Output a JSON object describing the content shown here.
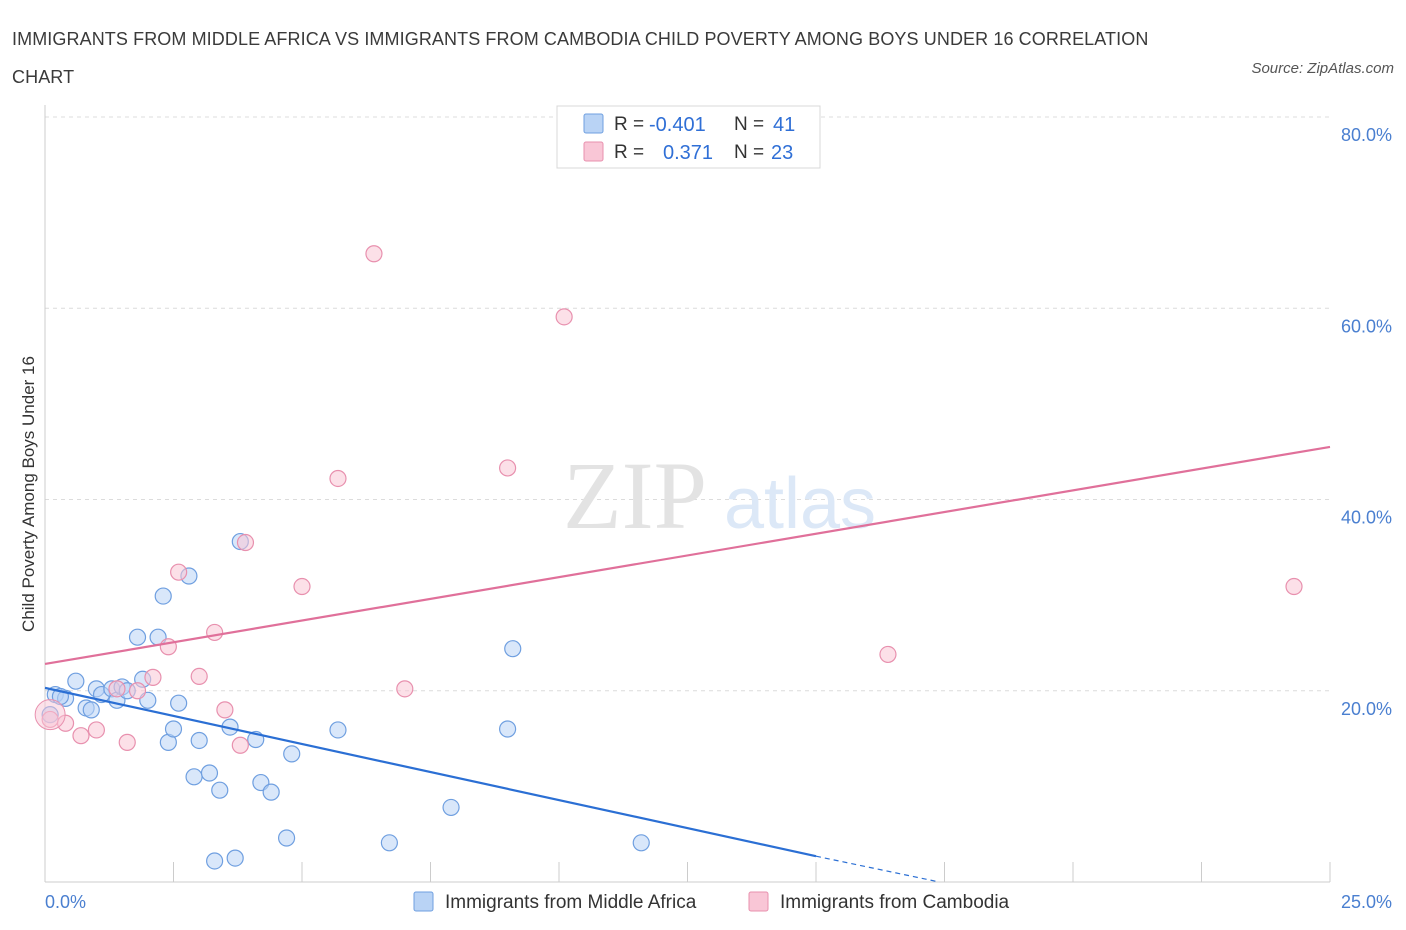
{
  "title": "IMMIGRANTS FROM MIDDLE AFRICA VS IMMIGRANTS FROM CAMBODIA CHILD POVERTY AMONG BOYS UNDER 16 CORRELATION CHART",
  "source": "Source: ZipAtlas.com",
  "watermark": {
    "zip": "ZIP",
    "atlas": "atlas"
  },
  "colors": {
    "blue_fill": "#b9d3f5",
    "blue_stroke": "#6f9fe0",
    "blue_line": "#2b6fd4",
    "pink_fill": "#f9c6d6",
    "pink_stroke": "#e890ae",
    "pink_line": "#e0709a",
    "grid": "#dcdcdc",
    "tick_label": "#4a7fd0"
  },
  "legend": {
    "r_label": "R =",
    "n_label": "N =",
    "entries": [
      {
        "r": "-0.401",
        "n": "41"
      },
      {
        "r": "0.371",
        "n": "23"
      }
    ]
  },
  "chart_data": {
    "type": "scatter",
    "xlabel": "",
    "ylabel": "Child Poverty Among Boys Under 16",
    "xlim": [
      0,
      25
    ],
    "ylim": [
      0,
      80
    ],
    "x_tick_labels": [
      "0.0%",
      "25.0%"
    ],
    "y_ticks": [
      20,
      40,
      60,
      80
    ],
    "y_tick_labels": [
      "20.0%",
      "40.0%",
      "60.0%",
      "80.0%"
    ],
    "grid": "horizontal dashed",
    "legend_placement": "top-center and bottom",
    "series": [
      {
        "name": "Immigrants from Middle Africa",
        "r": -0.401,
        "n": 41,
        "trend": {
          "x": [
            0,
            15
          ],
          "y": [
            20.3,
            2.7
          ],
          "dashed_extension_to": [
            17.4,
            0
          ]
        },
        "points": [
          [
            0.1,
            17.5
          ],
          [
            0.2,
            19.6
          ],
          [
            0.4,
            19.2
          ],
          [
            0.6,
            21.0
          ],
          [
            0.8,
            18.2
          ],
          [
            0.9,
            18.0
          ],
          [
            1.0,
            20.2
          ],
          [
            1.1,
            19.6
          ],
          [
            1.3,
            20.2
          ],
          [
            1.4,
            19.0
          ],
          [
            1.5,
            20.4
          ],
          [
            1.6,
            20.0
          ],
          [
            1.8,
            25.6
          ],
          [
            1.9,
            21.2
          ],
          [
            2.0,
            19.0
          ],
          [
            2.2,
            25.6
          ],
          [
            2.3,
            29.9
          ],
          [
            2.4,
            14.6
          ],
          [
            2.5,
            16.0
          ],
          [
            2.6,
            18.7
          ],
          [
            2.8,
            32.0
          ],
          [
            2.9,
            11.0
          ],
          [
            3.0,
            14.8
          ],
          [
            3.2,
            11.4
          ],
          [
            3.3,
            2.2
          ],
          [
            3.4,
            9.6
          ],
          [
            3.6,
            16.2
          ],
          [
            3.7,
            2.5
          ],
          [
            3.8,
            35.6
          ],
          [
            4.1,
            14.9
          ],
          [
            4.2,
            10.4
          ],
          [
            4.4,
            9.4
          ],
          [
            4.7,
            4.6
          ],
          [
            4.8,
            13.4
          ],
          [
            5.7,
            15.9
          ],
          [
            6.7,
            4.1
          ],
          [
            7.9,
            7.8
          ],
          [
            9.0,
            16.0
          ],
          [
            9.1,
            24.4
          ],
          [
            11.6,
            4.1
          ],
          [
            0.3,
            19.4
          ]
        ]
      },
      {
        "name": "Immigrants from Cambodia",
        "r": 0.371,
        "n": 23,
        "trend": {
          "x": [
            0,
            25
          ],
          "y": [
            22.8,
            45.5
          ]
        },
        "points": [
          [
            0.1,
            17.0
          ],
          [
            0.4,
            16.6
          ],
          [
            0.7,
            15.3
          ],
          [
            1.0,
            15.9
          ],
          [
            1.6,
            14.6
          ],
          [
            1.8,
            20.0
          ],
          [
            2.1,
            21.4
          ],
          [
            2.4,
            24.6
          ],
          [
            2.6,
            32.4
          ],
          [
            3.0,
            21.5
          ],
          [
            3.3,
            26.1
          ],
          [
            3.5,
            18.0
          ],
          [
            3.9,
            35.5
          ],
          [
            3.8,
            14.3
          ],
          [
            5.0,
            30.9
          ],
          [
            5.7,
            42.2
          ],
          [
            6.4,
            65.7
          ],
          [
            7.0,
            20.2
          ],
          [
            9.0,
            43.3
          ],
          [
            10.1,
            59.1
          ],
          [
            16.4,
            23.8
          ],
          [
            24.3,
            30.9
          ],
          [
            1.4,
            20.2
          ]
        ]
      }
    ]
  }
}
